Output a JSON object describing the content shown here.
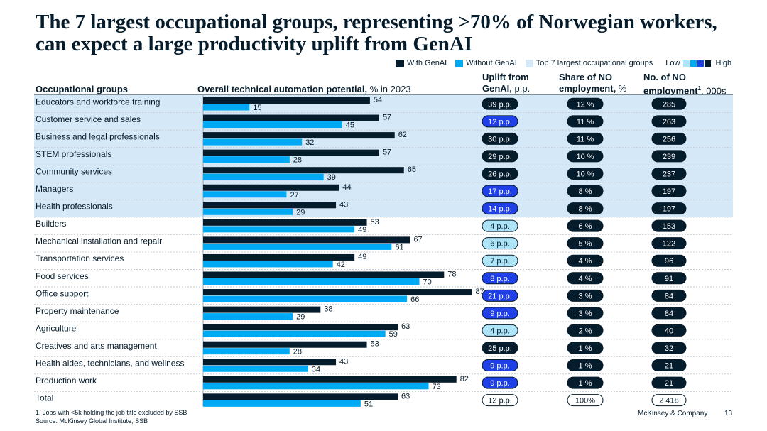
{
  "title": "The 7 largest occupational groups, representing >70% of Norwegian workers, can expect a large productivity uplift from GenAI",
  "legend": {
    "with_label": "With GenAI",
    "without_label": "Without GenAI",
    "top7_label": "Top 7 largest occupational groups",
    "low_label": "Low",
    "high_label": "High"
  },
  "headers": {
    "groups": "Occupational groups",
    "potential": "Overall technical automation potential,",
    "potential_unit": " % in 2023",
    "uplift_l1": "Uplift from",
    "uplift_l2": "GenAI,",
    "uplift_unit": " p.p.",
    "share_l1": "Share of NO",
    "share_l2": "employment,",
    "share_unit": " %",
    "count_l1": "No. of NO",
    "count_l2": "employment",
    "count_sup": "1",
    "count_unit": ", 000s"
  },
  "colors": {
    "with": "#051c2c",
    "without": "#00a9f4",
    "highlight": "#d4e8f8",
    "dark_pill": "#051c2c",
    "mid_pill": "#1f40e6",
    "light_pill": "#aee4f8"
  },
  "chart_data": {
    "type": "bar",
    "orientation": "horizontal",
    "title": "Overall technical automation potential, % in 2023",
    "categories": [
      "Educators and workforce training",
      "Customer service and sales",
      "Business and legal professionals",
      "STEM professionals",
      "Community services",
      "Managers",
      "Health professionals",
      "Builders",
      "Mechanical installation and repair",
      "Transportation services",
      "Food services",
      "Office support",
      "Property maintenance",
      "Agriculture",
      "Creatives and arts management",
      "Health aides, technicians, and wellness",
      "Production work",
      "Total"
    ],
    "series": [
      {
        "name": "With GenAI",
        "values": [
          54,
          57,
          62,
          57,
          65,
          44,
          43,
          53,
          67,
          49,
          78,
          87,
          38,
          63,
          53,
          43,
          82,
          63
        ]
      },
      {
        "name": "Without GenAI",
        "values": [
          15,
          45,
          32,
          28,
          39,
          27,
          29,
          49,
          61,
          42,
          70,
          66,
          29,
          59,
          28,
          34,
          73,
          51
        ]
      }
    ],
    "xlim": [
      0,
      100
    ],
    "top7_count": 7,
    "uplift_labels": [
      "39 p.p.",
      "12 p.p.",
      "30 p.p.",
      "29 p.p.",
      "26 p.p.",
      "17 p.p.",
      "14 p.p.",
      "4 p.p.",
      "6 p.p.",
      "7 p.p.",
      "8 p.p.",
      "21 p.p.",
      "9 p.p.",
      "4 p.p.",
      "25 p.p.",
      "9 p.p.",
      "9 p.p.",
      "12 p.p."
    ],
    "uplift_level": [
      "dark",
      "mid",
      "dark",
      "dark",
      "dark",
      "mid",
      "mid",
      "light",
      "light",
      "light",
      "mid",
      "mid",
      "mid",
      "light",
      "dark",
      "mid",
      "mid",
      "outline"
    ],
    "share_labels": [
      "12 %",
      "11 %",
      "11 %",
      "10 %",
      "10 %",
      "8 %",
      "8 %",
      "6 %",
      "5 %",
      "4 %",
      "4 %",
      "3 %",
      "3 %",
      "2 %",
      "1 %",
      "1 %",
      "1 %",
      "100%"
    ],
    "count_labels": [
      "285",
      "263",
      "256",
      "239",
      "237",
      "197",
      "197",
      "153",
      "122",
      "96",
      "91",
      "84",
      "84",
      "40",
      "32",
      "21",
      "21",
      "2 418"
    ]
  },
  "footnote": "1.   Jobs with <5k holding the job title excluded by SSB",
  "source": "Source: McKinsey Global Institute; SSB",
  "brand": "McKinsey & Company",
  "page_number": "13"
}
